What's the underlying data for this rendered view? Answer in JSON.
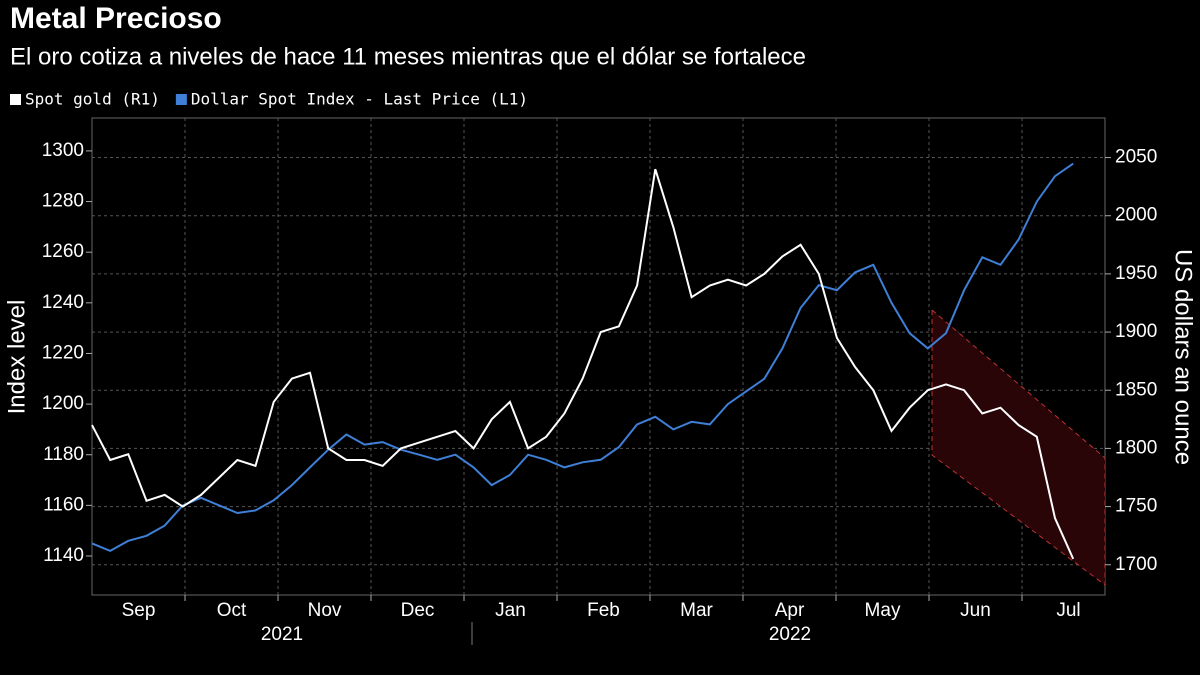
{
  "chart_data": {
    "type": "line",
    "title": "Metal Precioso",
    "subtitle": "El oro cotiza a niveles de hace 11 meses mientras que el dólar se fortalece",
    "y_label": "Index level",
    "y2_label": "US dollars an ounce",
    "months": [
      "Sep",
      "Oct",
      "Nov",
      "Dec",
      "Jan",
      "Feb",
      "Mar",
      "Apr",
      "May",
      "Jun",
      "Jul"
    ],
    "years": [
      "2021",
      "2022"
    ],
    "ylim": [
      1124.6,
      1313
    ],
    "yticks": [
      1140,
      1160,
      1180,
      1200,
      1220,
      1240,
      1260,
      1280,
      1300
    ],
    "y2lim": [
      1674,
      2084
    ],
    "y2ticks": [
      1700,
      1750,
      1800,
      1850,
      1900,
      1950,
      2000,
      2050
    ],
    "grid": true,
    "series": [
      {
        "name": "Spot gold (R1)",
        "color": "#ffffff",
        "axis": "y2",
        "values": [
          1820,
          1790,
          1795,
          1755,
          1760,
          1750,
          1760,
          1775,
          1790,
          1785,
          1840,
          1860,
          1865,
          1800,
          1790,
          1790,
          1785,
          1800,
          1805,
          1810,
          1815,
          1800,
          1825,
          1840,
          1800,
          1810,
          1830,
          1860,
          1900,
          1905,
          1940,
          2040,
          1990,
          1930,
          1940,
          1945,
          1940,
          1950,
          1965,
          1975,
          1950,
          1895,
          1870,
          1850,
          1815,
          1835,
          1850,
          1855,
          1850,
          1830,
          1835,
          1820,
          1810,
          1740,
          1705
        ]
      },
      {
        "name": "Dollar Spot Index - Last Price (L1)",
        "color": "#3f7fd6",
        "axis": "y",
        "values": [
          1145,
          1142,
          1146,
          1148,
          1152,
          1160,
          1163,
          1160,
          1157,
          1158,
          1162,
          1168,
          1175,
          1182,
          1188,
          1184,
          1185,
          1182,
          1180,
          1178,
          1180,
          1175,
          1168,
          1172,
          1180,
          1178,
          1175,
          1177,
          1178,
          1183,
          1192,
          1195,
          1190,
          1193,
          1192,
          1200,
          1205,
          1210,
          1222,
          1238,
          1247,
          1245,
          1252,
          1255,
          1240,
          1228,
          1222,
          1228,
          1245,
          1258,
          1255,
          1265,
          1280,
          1290,
          1295
        ]
      }
    ]
  }
}
